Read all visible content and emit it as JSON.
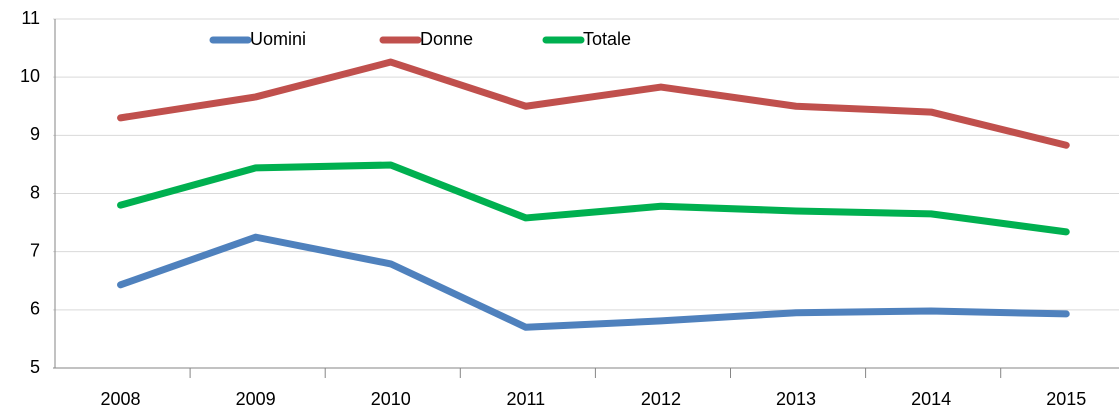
{
  "chart_data": {
    "type": "line",
    "categories": [
      "2008",
      "2009",
      "2010",
      "2011",
      "2012",
      "2013",
      "2014",
      "2015"
    ],
    "series": [
      {
        "name": "Uomini",
        "color": "#4f81bd",
        "values": [
          6.43,
          7.25,
          6.79,
          5.7,
          5.81,
          5.95,
          5.98,
          5.93
        ]
      },
      {
        "name": "Donne",
        "color": "#c0504d",
        "values": [
          9.3,
          9.66,
          10.26,
          9.5,
          9.83,
          9.5,
          9.4,
          8.83
        ]
      },
      {
        "name": "Totale",
        "color": "#00b050",
        "values": [
          7.8,
          8.44,
          8.49,
          7.58,
          7.78,
          7.7,
          7.65,
          7.34
        ]
      }
    ],
    "ylim": [
      5,
      11
    ],
    "yticks": [
      5,
      6,
      7,
      8,
      9,
      10,
      11
    ],
    "grid": true,
    "legend": "top"
  }
}
